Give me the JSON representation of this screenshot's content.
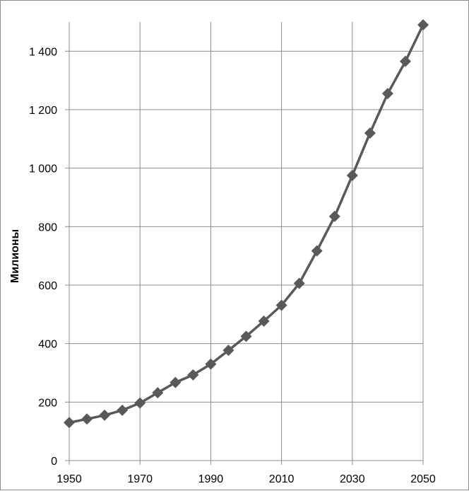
{
  "chart_data": {
    "type": "line",
    "title": "",
    "xlabel": "",
    "ylabel": "Милионы",
    "xlim": [
      1950,
      2050
    ],
    "ylim": [
      0,
      1500
    ],
    "x_ticks": [
      1950,
      1970,
      1990,
      2010,
      2030,
      2050
    ],
    "x_tick_labels": [
      "1950",
      "1970",
      "1990",
      "2010",
      "2030",
      "2050"
    ],
    "y_ticks": [
      0,
      200,
      400,
      600,
      800,
      1000,
      1200,
      1400
    ],
    "y_tick_labels": [
      "0",
      "200",
      "400",
      "600",
      "800",
      "1 000",
      "1 200",
      "1 400"
    ],
    "grid": true,
    "legend": "none",
    "series": [
      {
        "color": "#595959",
        "marker": "diamond",
        "x": [
          1950,
          1955,
          1960,
          1965,
          1970,
          1975,
          1980,
          1985,
          1990,
          1995,
          2000,
          2005,
          2010,
          2015,
          2020,
          2025,
          2030,
          2035,
          2040,
          2045,
          2050
        ],
        "y": [
          130,
          142,
          155,
          172,
          197,
          232,
          267,
          293,
          330,
          377,
          425,
          477,
          531,
          606,
          717,
          835,
          975,
          1120,
          1255,
          1365,
          1490
        ]
      }
    ],
    "gridline_color": "#8c8c8c"
  }
}
